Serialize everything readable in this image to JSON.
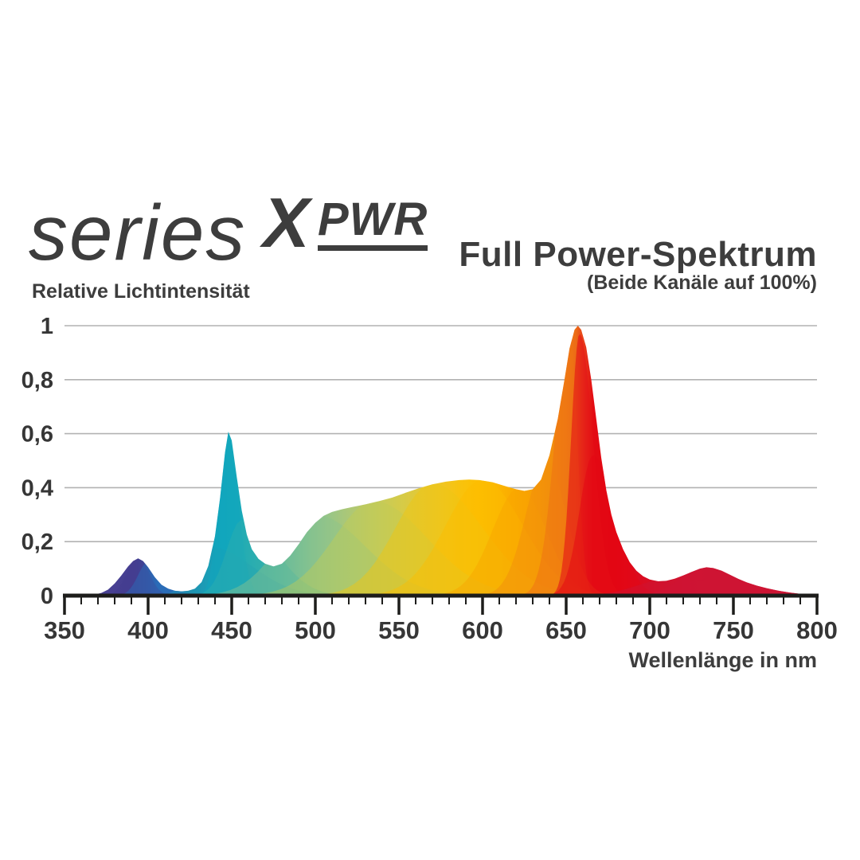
{
  "brand": {
    "series": "series",
    "x": "X",
    "pwr": "PWR"
  },
  "header": {
    "title": "Full Power-Spektrum",
    "subtitle": "(Beide Kanäle auf 100%)"
  },
  "chart_data": {
    "type": "area",
    "title": "Full Power-Spektrum",
    "subtitle": "(Beide Kanäle auf 100%)",
    "xlabel": "Wellenlänge in nm",
    "ylabel": "Relative Lichtintensität",
    "xlim": [
      350,
      800
    ],
    "ylim": [
      0,
      1
    ],
    "grid": "horizontal",
    "x_ticks": [
      {
        "v": 350,
        "label": "350"
      },
      {
        "v": 400,
        "label": "400"
      },
      {
        "v": 450,
        "label": "450"
      },
      {
        "v": 500,
        "label": "500"
      },
      {
        "v": 550,
        "label": "550"
      },
      {
        "v": 600,
        "label": "600"
      },
      {
        "v": 650,
        "label": "650"
      },
      {
        "v": 700,
        "label": "700"
      },
      {
        "v": 750,
        "label": "750"
      },
      {
        "v": 800,
        "label": "800"
      }
    ],
    "x_minor_tick_step": 10,
    "y_ticks": [
      {
        "v": 0,
        "label": "0"
      },
      {
        "v": 0.2,
        "label": "0,2"
      },
      {
        "v": 0.4,
        "label": "0,4"
      },
      {
        "v": 0.6,
        "label": "0,6"
      },
      {
        "v": 0.8,
        "label": "0,8"
      },
      {
        "v": 1,
        "label": "1"
      }
    ],
    "peaks_note": "UV-violet ~394nm 0.14, blue-cyan ~448nm 0.61, broad mid hump max ~0.43 at ~590nm, deep red ~657nm 1.0, far red ~734nm 0.105",
    "series": [
      [
        350,
        0
      ],
      [
        362,
        0
      ],
      [
        368,
        0.004
      ],
      [
        372,
        0.01
      ],
      [
        376,
        0.022
      ],
      [
        380,
        0.045
      ],
      [
        384,
        0.075
      ],
      [
        388,
        0.108
      ],
      [
        391,
        0.128
      ],
      [
        394,
        0.138
      ],
      [
        397,
        0.128
      ],
      [
        400,
        0.105
      ],
      [
        404,
        0.068
      ],
      [
        408,
        0.04
      ],
      [
        412,
        0.026
      ],
      [
        416,
        0.018
      ],
      [
        420,
        0.016
      ],
      [
        424,
        0.018
      ],
      [
        428,
        0.026
      ],
      [
        432,
        0.05
      ],
      [
        436,
        0.11
      ],
      [
        440,
        0.22
      ],
      [
        443,
        0.36
      ],
      [
        446,
        0.53
      ],
      [
        448,
        0.607
      ],
      [
        450,
        0.575
      ],
      [
        453,
        0.44
      ],
      [
        456,
        0.315
      ],
      [
        459,
        0.226
      ],
      [
        462,
        0.172
      ],
      [
        466,
        0.136
      ],
      [
        470,
        0.118
      ],
      [
        475,
        0.108
      ],
      [
        480,
        0.118
      ],
      [
        485,
        0.148
      ],
      [
        490,
        0.19
      ],
      [
        495,
        0.235
      ],
      [
        500,
        0.27
      ],
      [
        505,
        0.296
      ],
      [
        510,
        0.31
      ],
      [
        516,
        0.32
      ],
      [
        522,
        0.328
      ],
      [
        530,
        0.338
      ],
      [
        538,
        0.35
      ],
      [
        546,
        0.363
      ],
      [
        554,
        0.381
      ],
      [
        562,
        0.398
      ],
      [
        570,
        0.412
      ],
      [
        578,
        0.422
      ],
      [
        586,
        0.428
      ],
      [
        592,
        0.43
      ],
      [
        598,
        0.428
      ],
      [
        606,
        0.42
      ],
      [
        614,
        0.405
      ],
      [
        620,
        0.394
      ],
      [
        625,
        0.388
      ],
      [
        630,
        0.394
      ],
      [
        635,
        0.43
      ],
      [
        640,
        0.52
      ],
      [
        645,
        0.655
      ],
      [
        649,
        0.8
      ],
      [
        652,
        0.915
      ],
      [
        655,
        0.985
      ],
      [
        657,
        1.0
      ],
      [
        659,
        0.985
      ],
      [
        662,
        0.92
      ],
      [
        665,
        0.8
      ],
      [
        668,
        0.655
      ],
      [
        671,
        0.51
      ],
      [
        674,
        0.39
      ],
      [
        677,
        0.3
      ],
      [
        680,
        0.235
      ],
      [
        684,
        0.172
      ],
      [
        688,
        0.124
      ],
      [
        692,
        0.092
      ],
      [
        696,
        0.072
      ],
      [
        700,
        0.06
      ],
      [
        705,
        0.053
      ],
      [
        710,
        0.055
      ],
      [
        715,
        0.063
      ],
      [
        720,
        0.075
      ],
      [
        725,
        0.088
      ],
      [
        730,
        0.1
      ],
      [
        734,
        0.105
      ],
      [
        738,
        0.102
      ],
      [
        743,
        0.092
      ],
      [
        748,
        0.077
      ],
      [
        753,
        0.062
      ],
      [
        758,
        0.049
      ],
      [
        764,
        0.037
      ],
      [
        770,
        0.027
      ],
      [
        777,
        0.018
      ],
      [
        784,
        0.011
      ],
      [
        791,
        0.006
      ],
      [
        797,
        0.003
      ],
      [
        800,
        0.002
      ]
    ],
    "gradient_stops": [
      [
        368,
        "#4a4294"
      ],
      [
        392,
        "#453e90"
      ],
      [
        399,
        "#3a4e9d"
      ],
      [
        406,
        "#2a6cb8"
      ],
      [
        415,
        "#2a6cb4"
      ],
      [
        425,
        "#2089ae"
      ],
      [
        435,
        "#189fb8"
      ],
      [
        444,
        "#12a7bc"
      ],
      [
        455,
        "#17a9ba"
      ],
      [
        465,
        "#2cadb0"
      ],
      [
        476,
        "#45b4a8"
      ],
      [
        487,
        "#63bb9e"
      ],
      [
        497,
        "#80c192"
      ],
      [
        507,
        "#96c588"
      ],
      [
        517,
        "#a7c77b"
      ],
      [
        528,
        "#b8c96b"
      ],
      [
        540,
        "#c8cb58"
      ],
      [
        552,
        "#d6cb47"
      ],
      [
        564,
        "#e4c835"
      ],
      [
        576,
        "#f0c522"
      ],
      [
        586,
        "#f8c30e"
      ],
      [
        596,
        "#fdc002"
      ],
      [
        606,
        "#fcb900"
      ],
      [
        616,
        "#fbae00"
      ],
      [
        626,
        "#f9a303"
      ],
      [
        634,
        "#f69a06"
      ],
      [
        642,
        "#f28d0d"
      ],
      [
        650,
        "#ef7d13"
      ],
      [
        656,
        "#ec6b16"
      ],
      [
        661,
        "#e7371a"
      ],
      [
        666,
        "#e30b13"
      ],
      [
        680,
        "#e30613"
      ],
      [
        692,
        "#dc0b1e"
      ],
      [
        706,
        "#d41128"
      ],
      [
        722,
        "#d01331"
      ],
      [
        736,
        "#ce1434"
      ],
      [
        800,
        "#ce1434"
      ]
    ],
    "layers": [
      {
        "c": 394,
        "p": 0.142,
        "sl": 6.5,
        "sr": 6.5,
        "color": "#443d90",
        "op": 0.55
      },
      {
        "c": 400,
        "p": 0.125,
        "sl": 6,
        "sr": 10,
        "color": "#2a6cb8",
        "op": 0.5
      },
      {
        "c": 437,
        "p": 0.18,
        "sl": 10,
        "sr": 25,
        "color": "#1f9bb4",
        "op": 0.45
      },
      {
        "c": 447,
        "p": 0.615,
        "sl": 5,
        "sr": 6.5,
        "color": "#10a5bd",
        "op": 0.5
      },
      {
        "c": 456,
        "p": 0.28,
        "sl": 9,
        "sr": 20,
        "color": "#2fb0ae",
        "op": 0.45
      },
      {
        "c": 500,
        "p": 0.3,
        "sl": 22,
        "sr": 30,
        "color": "#8cc48c",
        "op": 0.45
      },
      {
        "c": 535,
        "p": 0.35,
        "sl": 24,
        "sr": 32,
        "color": "#c2cb55",
        "op": 0.45
      },
      {
        "c": 570,
        "p": 0.415,
        "sl": 22,
        "sr": 30,
        "color": "#edc614",
        "op": 0.5
      },
      {
        "c": 600,
        "p": 0.43,
        "sl": 22,
        "sr": 24,
        "color": "#fcbd00",
        "op": 0.45
      },
      {
        "c": 622,
        "p": 0.4,
        "sl": 16,
        "sr": 16,
        "color": "#f9a500",
        "op": 0.45
      },
      {
        "c": 638,
        "p": 0.5,
        "sl": 12,
        "sr": 12,
        "color": "#f28e0b",
        "op": 0.5
      },
      {
        "c": 652,
        "p": 1.0,
        "sl": 8.5,
        "sr": 4.5,
        "color": "#ee7214",
        "op": 0.55
      },
      {
        "c": 658,
        "p": 0.97,
        "sl": 5,
        "sr": 8,
        "color": "#e41317",
        "op": 0.6
      },
      {
        "c": 666,
        "p": 0.52,
        "sl": 8,
        "sr": 13,
        "color": "#e30613",
        "op": 0.5
      },
      {
        "c": 710,
        "p": 0.06,
        "sl": 18,
        "sr": 60,
        "color": "#ce1434",
        "op": 0.5
      },
      {
        "c": 734,
        "p": 0.107,
        "sl": 15,
        "sr": 24,
        "color": "#ce1434",
        "op": 0.6
      }
    ],
    "colors": {
      "axis": "#1d1d1b",
      "gridline": "#b2b2b2",
      "tick_text": "#363636",
      "peak_red": "#e30613",
      "peak_cyan": "#14a8bc",
      "peak_violet": "#4a4294",
      "far_red": "#ce1434"
    }
  }
}
